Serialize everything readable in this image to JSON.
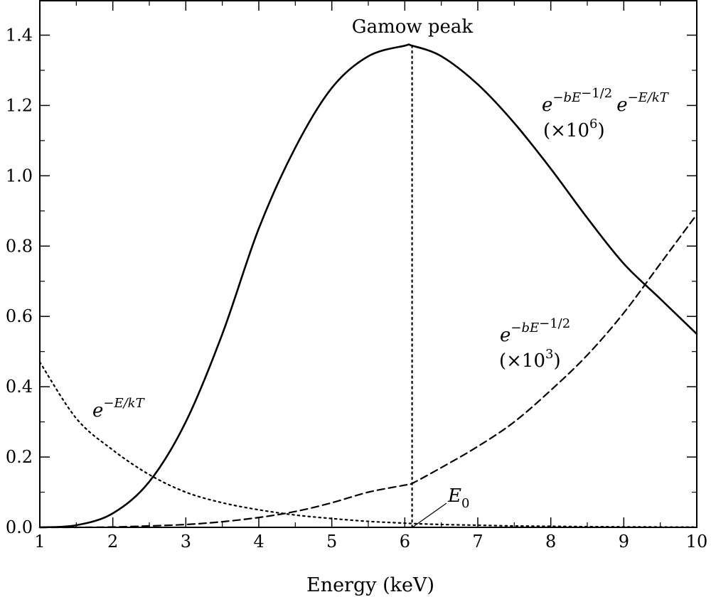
{
  "chart_data": {
    "type": "line",
    "xlabel": "Energy (keV)",
    "ylabel": "",
    "title": "",
    "xlim": [
      1,
      10
    ],
    "ylim": [
      0,
      1.5
    ],
    "x_ticks": [
      1,
      2,
      3,
      4,
      5,
      6,
      7,
      8,
      9,
      10
    ],
    "y_ticks": [
      0.0,
      0.2,
      0.4,
      0.6,
      0.8,
      1.0,
      1.2,
      1.4
    ],
    "x_tick_labels": [
      "1",
      "2",
      "3",
      "4",
      "5",
      "6",
      "7",
      "8",
      "9",
      "10"
    ],
    "y_tick_labels": [
      "0.0",
      "0.2",
      "0.4",
      "0.6",
      "0.8",
      "1.0",
      "1.2",
      "1.4"
    ],
    "grid": false,
    "x_values": [
      1.0,
      1.5,
      2.0,
      2.5,
      3.0,
      3.5,
      4.0,
      4.5,
      5.0,
      5.5,
      6.0,
      6.1,
      6.5,
      7.0,
      7.5,
      8.0,
      8.5,
      9.0,
      9.5,
      10.0
    ],
    "series": [
      {
        "style": "solid",
        "values": [
          0.0,
          0.006,
          0.04,
          0.13,
          0.3,
          0.55,
          0.85,
          1.08,
          1.25,
          1.34,
          1.37,
          1.37,
          1.34,
          1.26,
          1.15,
          1.02,
          0.88,
          0.75,
          0.65,
          0.55
        ]
      },
      {
        "style": "dashed",
        "values": [
          0.0,
          0.0,
          0.001,
          0.004,
          0.008,
          0.016,
          0.028,
          0.045,
          0.07,
          0.1,
          0.12,
          0.125,
          0.17,
          0.23,
          0.3,
          0.39,
          0.49,
          0.61,
          0.75,
          0.89
        ]
      },
      {
        "style": "dotted",
        "values": [
          0.47,
          0.31,
          0.22,
          0.15,
          0.1,
          0.07,
          0.05,
          0.035,
          0.025,
          0.017,
          0.012,
          0.011,
          0.008,
          0.006,
          0.004,
          0.003,
          0.002,
          0.0015,
          0.001,
          0.0007
        ]
      }
    ],
    "peak_marker": {
      "x": 6.1,
      "y": 1.37,
      "style": "dotted"
    },
    "annotations": {
      "gamow_peak": "Gamow peak",
      "e0": {
        "base": "E",
        "sub": "0"
      },
      "combined": {
        "base1": "e",
        "sup1": "−bE",
        "sup1b": "−1/2",
        "base2": "e",
        "sup2": "−E/kT",
        "scale_open": "(×10",
        "scale_sup": "6",
        "scale_close": ")"
      },
      "tunneling": {
        "base": "e",
        "sup": "−bE",
        "supb": "−1/2",
        "scale_open": "(×10",
        "scale_sup": "3",
        "scale_close": ")"
      },
      "boltzmann": {
        "base": "e",
        "sup": "−E/kT"
      }
    }
  }
}
